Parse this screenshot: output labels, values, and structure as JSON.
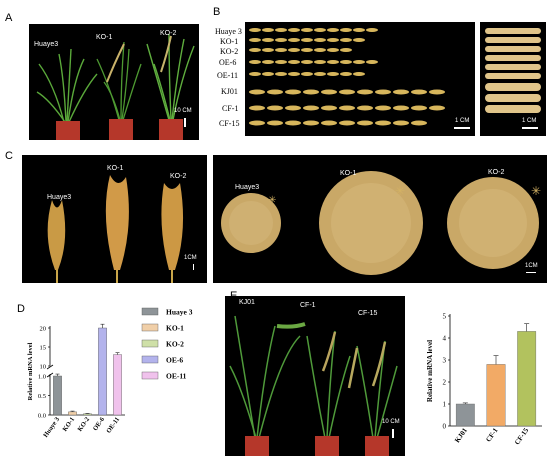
{
  "panels": {
    "a": {
      "label": "A",
      "plants": [
        "Huaye3",
        "KO-1",
        "KO-2"
      ],
      "scale": "10 CM"
    },
    "b": {
      "label": "B",
      "rows": [
        "Huaye 3",
        "KO-1",
        "KO-2",
        "OE-6",
        "OE-11",
        "KJ01",
        "CF-1",
        "CF-15"
      ],
      "scale_left": "1 CM",
      "scale_right": "1 CM"
    },
    "c": {
      "label": "C",
      "panicles": [
        "Huaye3",
        "KO-1",
        "KO-2"
      ],
      "scale_left": "1CM",
      "piles": [
        "Huaye3",
        "KO-1",
        "KO-2"
      ],
      "scale_right": "1CM"
    },
    "d": {
      "label": "D"
    },
    "e": {
      "label": "E",
      "plants": [
        "KJ01",
        "CF-1",
        "CF-15"
      ],
      "scale": "10 CM"
    }
  },
  "chart_data": [
    {
      "type": "bar",
      "panel": "D",
      "categories": [
        "Huaye 3",
        "KO-1",
        "KO-2",
        "OE-6",
        "OE-11"
      ],
      "series": [
        {
          "name": "Huaye 3",
          "value": 1.0,
          "error": 0.05,
          "color": "#8e9498"
        },
        {
          "name": "KO-1",
          "value": 0.08,
          "error": 0.02,
          "color": "#f0cfa8"
        },
        {
          "name": "KO-2",
          "value": 0.03,
          "error": 0.01,
          "color": "#cfe0a8"
        },
        {
          "name": "OE-6",
          "value": 20.0,
          "error": 1.0,
          "color": "#b3b3ec"
        },
        {
          "name": "OE-11",
          "value": 13.0,
          "error": 0.5,
          "color": "#f0c2ec"
        }
      ],
      "ylabel": "Relative mRNA level",
      "yticks_lower": [
        "0.0",
        "0.5",
        "1.0"
      ],
      "yticks_upper": [
        "10",
        "15",
        "20"
      ],
      "axis_break": true,
      "legend": "right"
    },
    {
      "type": "bar",
      "panel": "E",
      "categories": [
        "KJ01",
        "CF-1",
        "CF-15"
      ],
      "values": [
        1.0,
        2.8,
        4.3
      ],
      "errors": [
        0.05,
        0.4,
        0.35
      ],
      "colors": [
        "#8e9498",
        "#f2aa66",
        "#b2c25e"
      ],
      "ylabel": "Relative mRNA level",
      "ylim": [
        0,
        5
      ],
      "yticks": [
        "0",
        "1",
        "2",
        "3",
        "4",
        "5"
      ]
    }
  ]
}
